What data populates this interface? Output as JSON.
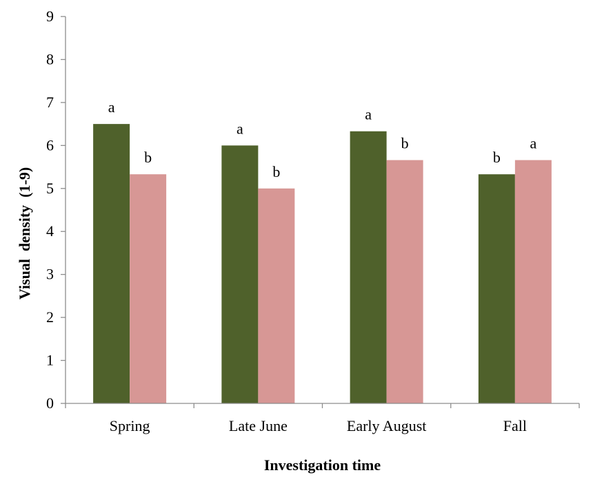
{
  "chart_data": {
    "type": "bar",
    "title": "",
    "xlabel": "Investigation time",
    "ylabel": "Visual  density  (1-9)",
    "ylim": [
      0,
      9
    ],
    "yticks": [
      "0",
      "1",
      "2",
      "3",
      "4",
      "5",
      "6",
      "7",
      "8",
      "9"
    ],
    "grid": false,
    "legend": "none",
    "categories": [
      "Spring",
      "Late June",
      "Early August",
      "Fall"
    ],
    "series": [
      {
        "values": [
          6.5,
          6.0,
          6.33,
          5.33
        ],
        "letters": [
          "a",
          "a",
          "a",
          "b"
        ],
        "color": "#4f612b"
      },
      {
        "values": [
          5.33,
          5.0,
          5.66,
          5.66
        ],
        "letters": [
          "b",
          "b",
          "b",
          "a"
        ],
        "color": "#d79795"
      }
    ]
  }
}
